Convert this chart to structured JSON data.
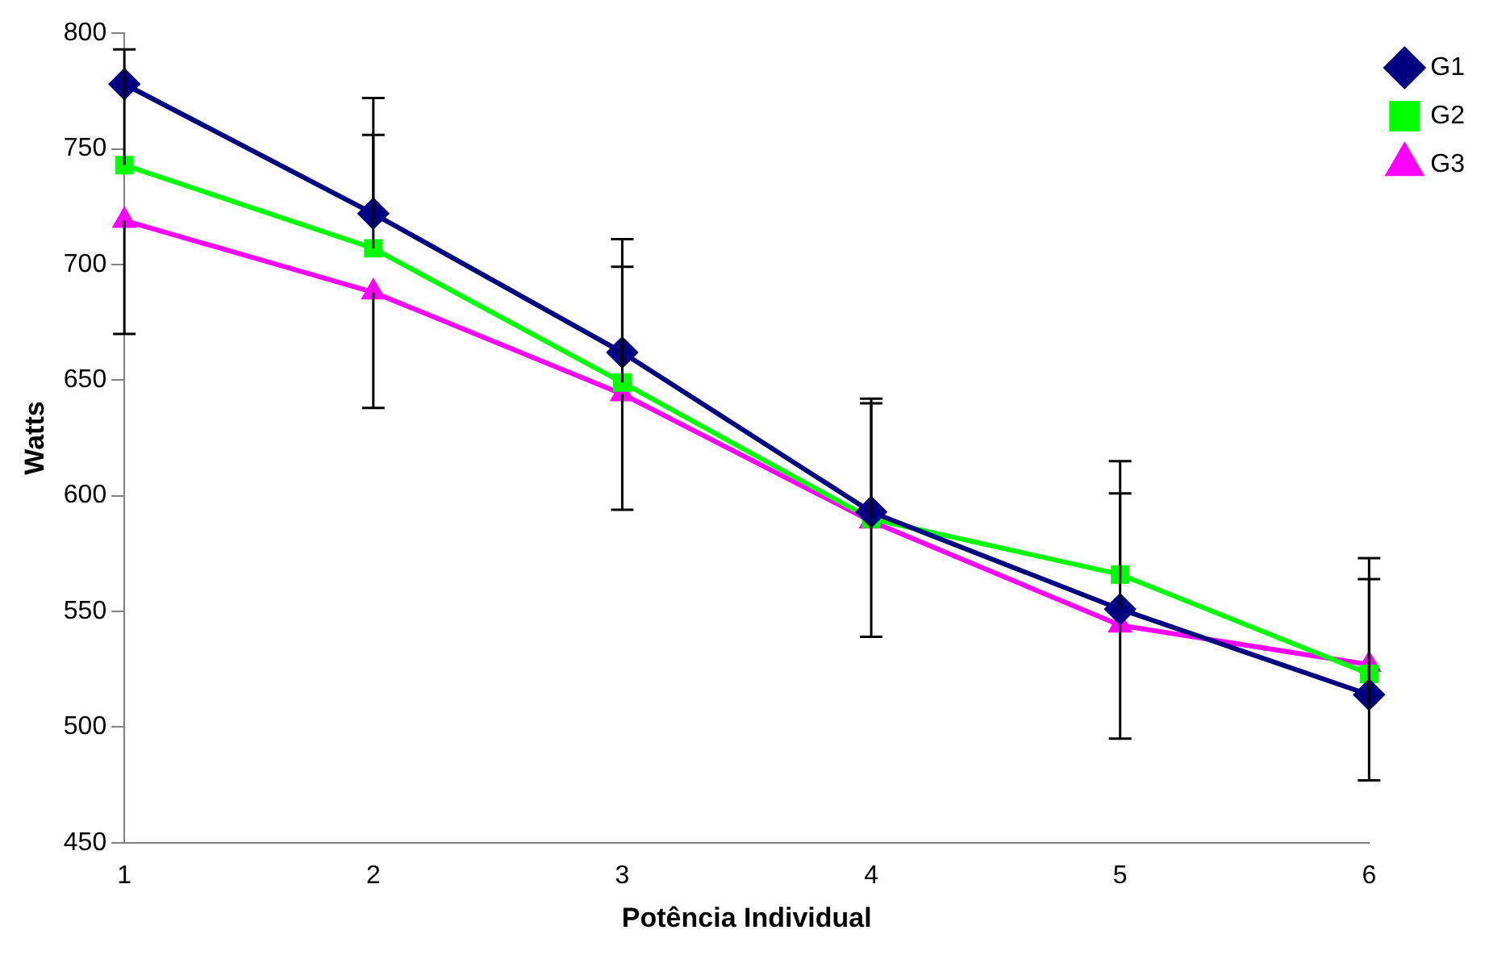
{
  "chart_data": {
    "type": "line",
    "xlabel": "Potência Individual",
    "ylabel": "Watts",
    "categories": [
      "1",
      "2",
      "3",
      "4",
      "5",
      "6"
    ],
    "series": [
      {
        "name": "G1",
        "color": "#000080",
        "marker": "diamond",
        "values": [
          778,
          722,
          662,
          593,
          551,
          514
        ],
        "errors": [
          null,
          [
            722,
            772
          ],
          [
            662,
            711
          ],
          [
            593,
            642
          ],
          [
            551,
            601
          ],
          [
            514,
            564
          ]
        ]
      },
      {
        "name": "G2",
        "color": "#00ff00",
        "marker": "square",
        "values": [
          743,
          707,
          649,
          590,
          566,
          523
        ],
        "errors": [
          [
            743,
            793
          ],
          [
            707,
            756
          ],
          [
            649,
            699
          ],
          [
            590,
            640
          ],
          [
            566,
            615
          ],
          [
            523,
            573
          ]
        ]
      },
      {
        "name": "G3",
        "color": "#ff00ff",
        "marker": "triangle",
        "values": [
          719,
          688,
          644,
          589,
          544,
          527
        ],
        "errors": [
          [
            670,
            719
          ],
          [
            638,
            688
          ],
          [
            594,
            644
          ],
          [
            539,
            589
          ],
          [
            495,
            544
          ],
          [
            477,
            527
          ]
        ]
      }
    ],
    "ylim": [
      450,
      800
    ],
    "yticks": [
      450,
      500,
      550,
      600,
      650,
      700,
      750,
      800
    ],
    "grid": false,
    "legend": "top right",
    "line_style": "solid"
  }
}
